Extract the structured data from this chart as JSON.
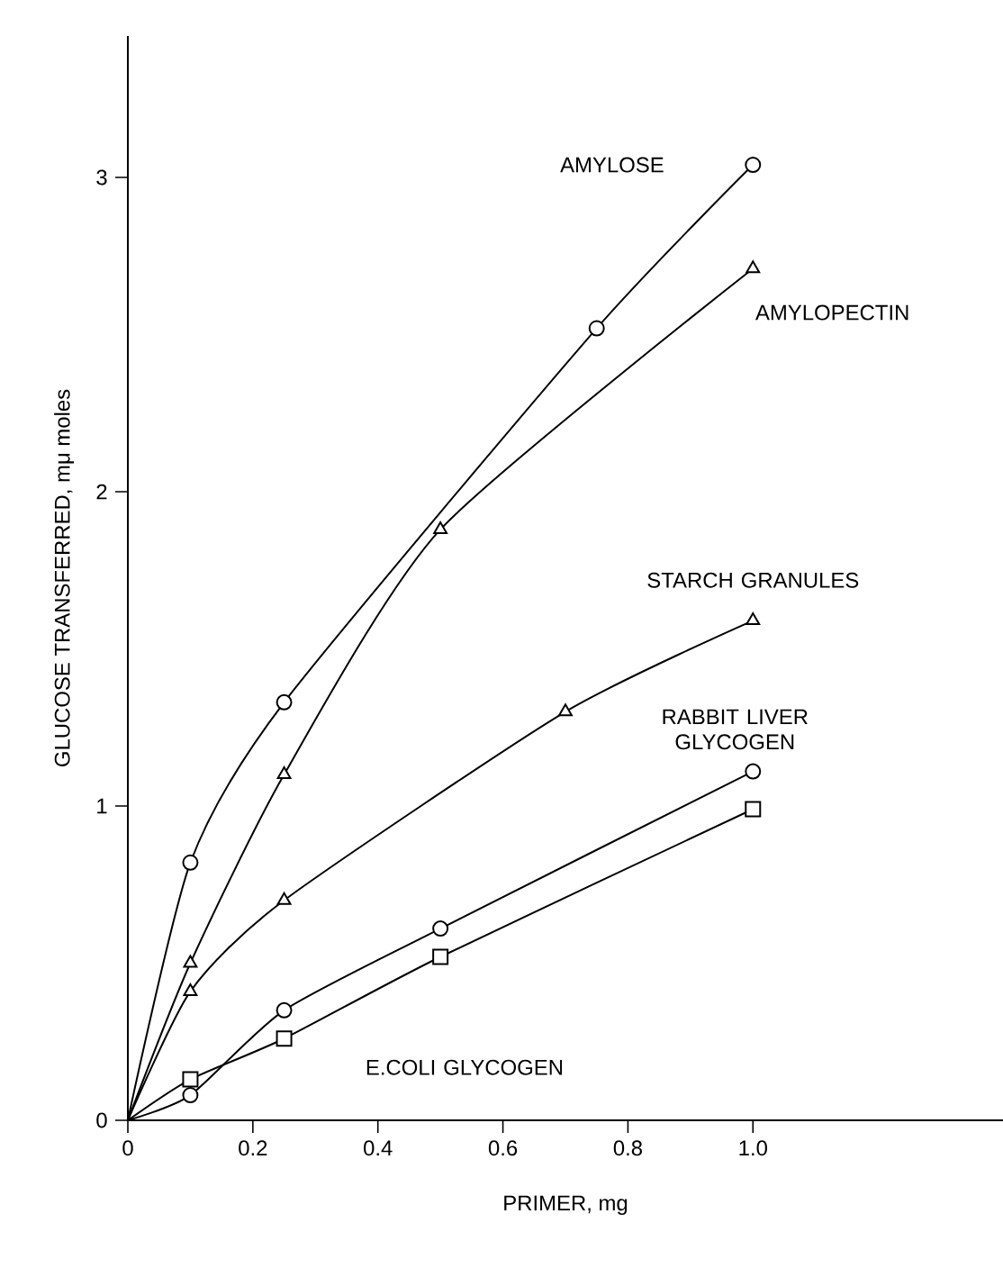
{
  "chart_data": {
    "type": "line",
    "xlabel": "PRIMER, mg",
    "ylabel": "GLUCOSE TRANSFERRED, mμ moles",
    "xlim": [
      0,
      1.4
    ],
    "ylim": [
      0,
      3.45
    ],
    "xticks": [
      0,
      0.2,
      0.4,
      0.6,
      0.8,
      {
        "value": 1.0,
        "label": "1.0"
      }
    ],
    "yticks": [
      0,
      1,
      2,
      3
    ],
    "grid": false,
    "legend": false,
    "line_style": "solid",
    "series": [
      {
        "name": "AMYLOSE",
        "color": "#000000",
        "marker": "circle",
        "x": [
          0,
          0.1,
          0.25,
          0.75,
          1.0
        ],
        "values": [
          0,
          0.82,
          1.33,
          2.52,
          3.04
        ]
      },
      {
        "name": "AMYLOPECTIN",
        "color": "#000000",
        "marker": "triangle",
        "x": [
          0,
          0.1,
          0.25,
          0.5,
          1.0
        ],
        "values": [
          0,
          0.5,
          1.1,
          1.88,
          2.71
        ]
      },
      {
        "name": "STARCH GRANULES",
        "color": "#000000",
        "marker": "triangle",
        "x": [
          0,
          0.1,
          0.25,
          0.7,
          1.0
        ],
        "values": [
          0,
          0.41,
          0.7,
          1.3,
          1.59
        ]
      },
      {
        "name": "RABBIT LIVER GLYCOGEN",
        "color": "#000000",
        "marker": "circle",
        "x": [
          0,
          0.1,
          0.25,
          0.5,
          1.0
        ],
        "values": [
          0,
          0.08,
          0.35,
          0.61,
          1.11
        ]
      },
      {
        "name": "E.COLI GLYCOGEN",
        "color": "#000000",
        "marker": "square",
        "x": [
          0,
          0.1,
          0.25,
          0.5,
          1.0
        ],
        "values": [
          0,
          0.13,
          0.26,
          0.52,
          0.99
        ]
      }
    ]
  }
}
